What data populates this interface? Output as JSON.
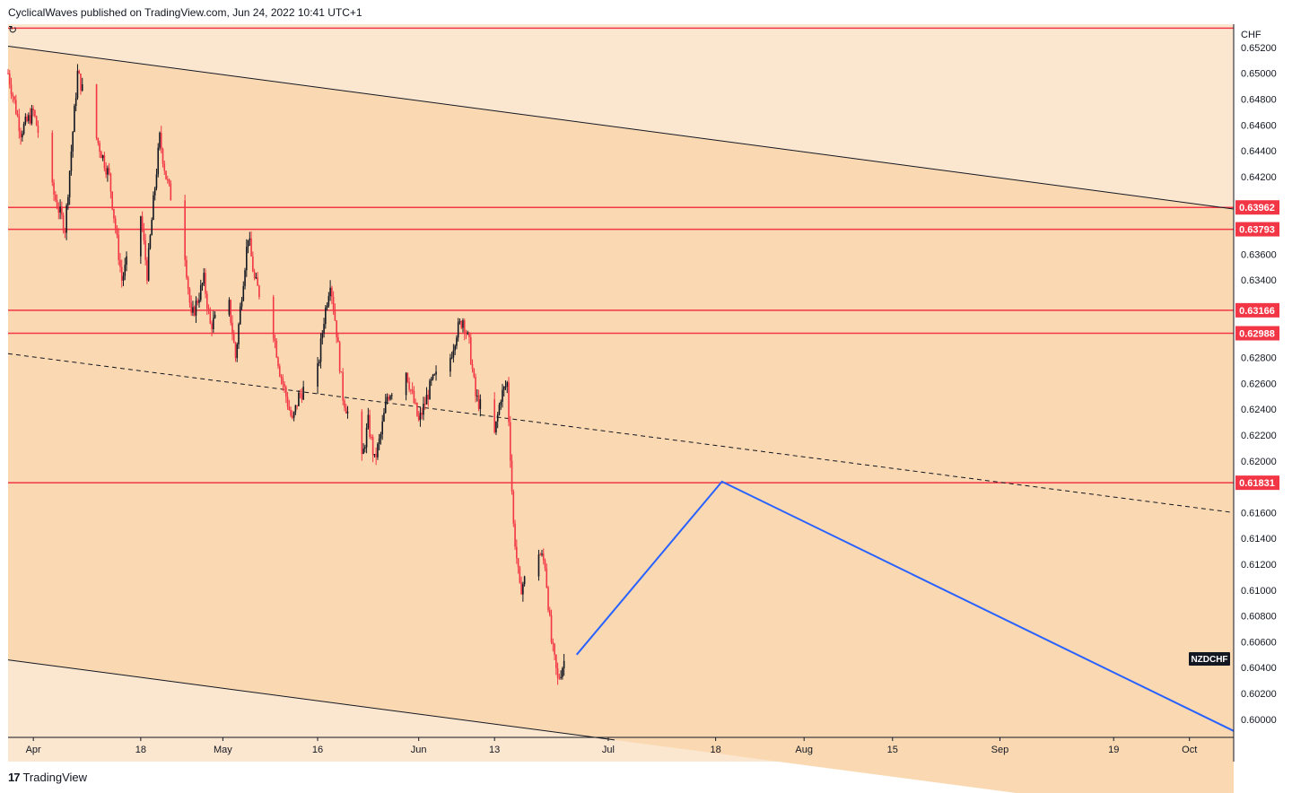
{
  "header": {
    "publisher": "CyclicalWaves published on TradingView.com, Jun 24, 2022 10:41 UTC+1"
  },
  "footer": {
    "brand": "TradingView"
  },
  "chart_data": {
    "type": "candlestick",
    "symbol": "NZDCHF",
    "currency": "CHF",
    "ylim": [
      0.5986,
      0.6538
    ],
    "y_ticks": [
      "0.65200",
      "0.65000",
      "0.64800",
      "0.64600",
      "0.64400",
      "0.64200",
      "0.63600",
      "0.63400",
      "0.62800",
      "0.62600",
      "0.62400",
      "0.62200",
      "0.62000",
      "0.61600",
      "0.61400",
      "0.61200",
      "0.61000",
      "0.60800",
      "0.60600",
      "0.60400",
      "0.60200",
      "0.60000"
    ],
    "x_ticks": [
      {
        "label": "Apr",
        "date": "2022-04-01"
      },
      {
        "label": "18",
        "date": "2022-04-18"
      },
      {
        "label": "May",
        "date": "2022-05-01"
      },
      {
        "label": "16",
        "date": "2022-05-16"
      },
      {
        "label": "Jun",
        "date": "2022-06-01"
      },
      {
        "label": "13",
        "date": "2022-06-13"
      },
      {
        "label": "Jul",
        "date": "2022-07-01"
      },
      {
        "label": "18",
        "date": "2022-07-18"
      },
      {
        "label": "Aug",
        "date": "2022-08-01"
      },
      {
        "label": "15",
        "date": "2022-08-15"
      },
      {
        "label": "Sep",
        "date": "2022-09-01"
      },
      {
        "label": "19",
        "date": "2022-09-19"
      },
      {
        "label": "Oct",
        "date": "2022-10-01"
      }
    ],
    "levels": [
      "0.63962",
      "0.63793",
      "0.63166",
      "0.62988",
      "0.61831"
    ],
    "top_level": 0.6535,
    "channel_lines": [
      {
        "style": "solid",
        "from": [
          "2022-03-28",
          0.6521
        ],
        "to": [
          "2022-10-08",
          0.6395
        ]
      },
      {
        "style": "dashed",
        "from": [
          "2022-03-28",
          0.6283
        ],
        "to": [
          "2022-10-08",
          0.616
        ]
      },
      {
        "style": "solid",
        "from": [
          "2022-03-28",
          0.6046
        ],
        "to": [
          "2022-07-02",
          0.5984
        ]
      }
    ],
    "projection": [
      [
        "2022-06-26",
        0.605
      ],
      [
        "2022-07-19",
        0.6184
      ],
      [
        "2022-10-08",
        0.5991
      ]
    ],
    "price_path": [
      [
        "2022-03-28",
        0.65
      ],
      [
        "2022-03-30",
        0.6455
      ],
      [
        "2022-04-01",
        0.647
      ],
      [
        "2022-04-04",
        0.641
      ],
      [
        "2022-04-06",
        0.638
      ],
      [
        "2022-04-07",
        0.644
      ],
      [
        "2022-04-08",
        0.65
      ],
      [
        "2022-04-11",
        0.645
      ],
      [
        "2022-04-13",
        0.642
      ],
      [
        "2022-04-14",
        0.638
      ],
      [
        "2022-04-15",
        0.634
      ],
      [
        "2022-04-18",
        0.639
      ],
      [
        "2022-04-19",
        0.6345
      ],
      [
        "2022-04-20",
        0.64
      ],
      [
        "2022-04-21",
        0.645
      ],
      [
        "2022-04-22",
        0.642
      ],
      [
        "2022-04-25",
        0.636
      ],
      [
        "2022-04-26",
        0.631
      ],
      [
        "2022-04-28",
        0.634
      ],
      [
        "2022-04-29",
        0.6305
      ],
      [
        "2022-05-02",
        0.632
      ],
      [
        "2022-05-03",
        0.628
      ],
      [
        "2022-05-04",
        0.633
      ],
      [
        "2022-05-05",
        0.6375
      ],
      [
        "2022-05-06",
        0.634
      ],
      [
        "2022-05-09",
        0.63
      ],
      [
        "2022-05-10",
        0.627
      ],
      [
        "2022-05-12",
        0.623
      ],
      [
        "2022-05-13",
        0.625
      ],
      [
        "2022-05-16",
        0.627
      ],
      [
        "2022-05-17",
        0.631
      ],
      [
        "2022-05-18",
        0.634
      ],
      [
        "2022-05-19",
        0.63
      ],
      [
        "2022-05-20",
        0.625
      ],
      [
        "2022-05-23",
        0.62
      ],
      [
        "2022-05-24",
        0.623
      ],
      [
        "2022-05-25",
        0.62
      ],
      [
        "2022-05-26",
        0.622
      ],
      [
        "2022-05-27",
        0.625
      ],
      [
        "2022-05-30",
        0.627
      ],
      [
        "2022-05-31",
        0.625
      ],
      [
        "2022-06-01",
        0.623
      ],
      [
        "2022-06-03",
        0.626
      ],
      [
        "2022-06-06",
        0.628
      ],
      [
        "2022-06-07",
        0.63
      ],
      [
        "2022-06-08",
        0.631
      ],
      [
        "2022-06-09",
        0.629
      ],
      [
        "2022-06-10",
        0.625
      ],
      [
        "2022-06-13",
        0.622
      ],
      [
        "2022-06-14",
        0.625
      ],
      [
        "2022-06-15",
        0.626
      ],
      [
        "2022-06-16",
        0.615
      ],
      [
        "2022-06-17",
        0.61
      ],
      [
        "2022-06-20",
        0.613
      ],
      [
        "2022-06-21",
        0.612
      ],
      [
        "2022-06-22",
        0.606
      ],
      [
        "2022-06-23",
        0.603
      ],
      [
        "2022-06-24",
        0.6045
      ]
    ]
  }
}
